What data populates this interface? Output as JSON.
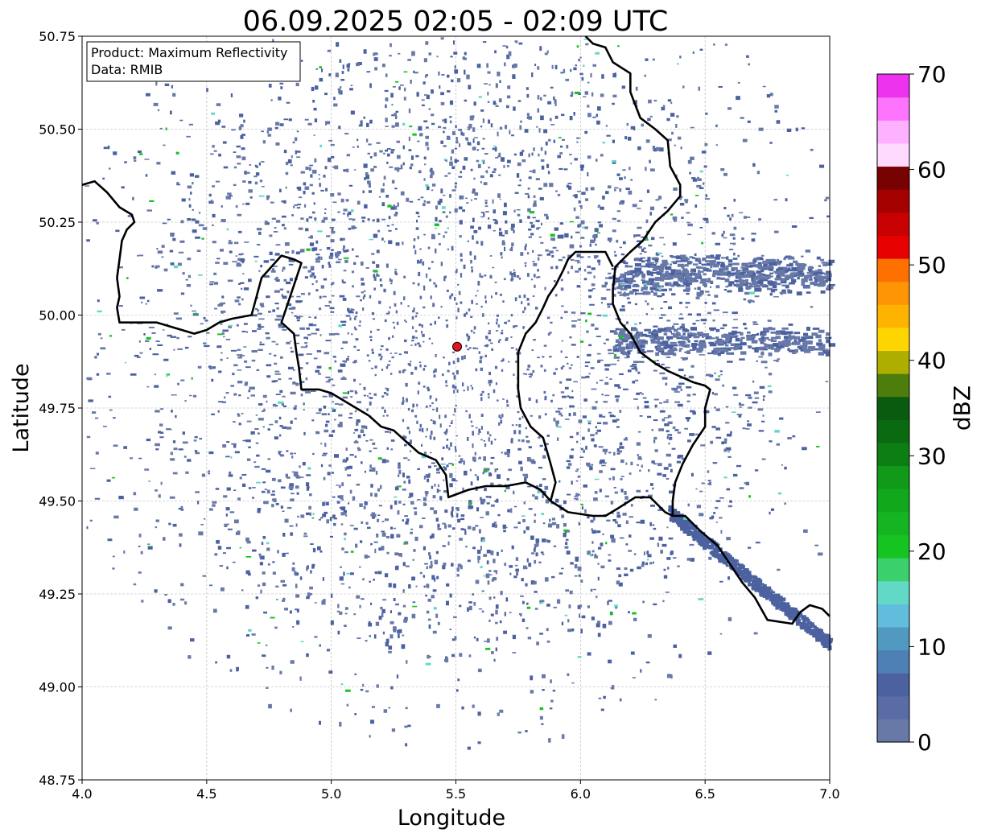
{
  "title": "06.09.2025 02:05 - 02:09 UTC",
  "map": {
    "xlabel": "Longitude",
    "ylabel": "Latitude",
    "xlim": [
      4.0,
      7.0
    ],
    "ylim": [
      48.75,
      50.75
    ],
    "xticks": [
      "4.0",
      "4.5",
      "5.0",
      "5.5",
      "6.0",
      "6.5",
      "7.0"
    ],
    "yticks": [
      "48.75",
      "49.00",
      "49.25",
      "49.50",
      "49.75",
      "50.00",
      "50.25",
      "50.50",
      "50.75"
    ],
    "grid": true,
    "radar_site": {
      "lon": 5.505,
      "lat": 49.915,
      "color": "#e8141c"
    },
    "info_box": {
      "product": "Product: Maximum Reflectivity",
      "data": "Data: RMIB"
    },
    "borders": [
      [
        [
          4.0,
          50.35
        ],
        [
          4.05,
          50.36
        ],
        [
          4.1,
          50.33
        ],
        [
          4.15,
          50.29
        ],
        [
          4.2,
          50.27
        ],
        [
          4.21,
          50.25
        ],
        [
          4.18,
          50.23
        ],
        [
          4.16,
          50.2
        ],
        [
          4.15,
          50.15
        ],
        [
          4.14,
          50.1
        ],
        [
          4.15,
          50.05
        ],
        [
          4.14,
          50.02
        ],
        [
          4.15,
          49.98
        ],
        [
          4.23,
          49.98
        ],
        [
          4.3,
          49.98
        ],
        [
          4.4,
          49.96
        ],
        [
          4.45,
          49.95
        ],
        [
          4.5,
          49.96
        ],
        [
          4.55,
          49.98
        ],
        [
          4.6,
          49.99
        ],
        [
          4.68,
          50.0
        ],
        [
          4.7,
          50.05
        ],
        [
          4.72,
          50.1
        ],
        [
          4.8,
          50.16
        ],
        [
          4.85,
          50.15
        ],
        [
          4.88,
          50.14
        ],
        [
          4.86,
          50.1
        ],
        [
          4.84,
          50.06
        ],
        [
          4.82,
          50.02
        ],
        [
          4.8,
          49.98
        ],
        [
          4.85,
          49.95
        ],
        [
          4.86,
          49.9
        ],
        [
          4.87,
          49.86
        ],
        [
          4.88,
          49.8
        ],
        [
          4.95,
          49.8
        ],
        [
          5.0,
          49.79
        ],
        [
          5.05,
          49.77
        ],
        [
          5.1,
          49.75
        ],
        [
          5.15,
          49.73
        ],
        [
          5.2,
          49.7
        ],
        [
          5.25,
          49.69
        ],
        [
          5.3,
          49.66
        ],
        [
          5.35,
          49.63
        ],
        [
          5.42,
          49.61
        ],
        [
          5.46,
          49.57
        ],
        [
          5.47,
          49.51
        ],
        [
          5.55,
          49.53
        ],
        [
          5.62,
          49.54
        ],
        [
          5.7,
          49.54
        ],
        [
          5.78,
          49.55
        ],
        [
          5.84,
          49.53
        ],
        [
          5.88,
          49.5
        ],
        [
          5.95,
          49.47
        ],
        [
          6.05,
          49.46
        ],
        [
          6.1,
          49.46
        ],
        [
          6.15,
          49.48
        ],
        [
          6.22,
          49.51
        ],
        [
          6.28,
          49.51
        ],
        [
          6.34,
          49.47
        ],
        [
          6.37,
          49.46
        ],
        [
          6.42,
          49.46
        ],
        [
          6.48,
          49.42
        ],
        [
          6.55,
          49.38
        ],
        [
          6.6,
          49.33
        ],
        [
          6.65,
          49.28
        ],
        [
          6.7,
          49.24
        ],
        [
          6.75,
          49.18
        ],
        [
          6.85,
          49.17
        ],
        [
          6.88,
          49.2
        ],
        [
          6.92,
          49.22
        ],
        [
          6.97,
          49.21
        ],
        [
          7.0,
          49.19
        ]
      ],
      [
        [
          6.02,
          50.75
        ],
        [
          6.05,
          50.73
        ],
        [
          6.1,
          50.72
        ],
        [
          6.13,
          50.68
        ],
        [
          6.2,
          50.65
        ],
        [
          6.2,
          50.6
        ],
        [
          6.24,
          50.53
        ],
        [
          6.3,
          50.5
        ],
        [
          6.35,
          50.47
        ],
        [
          6.36,
          50.4
        ],
        [
          6.4,
          50.35
        ],
        [
          6.4,
          50.32
        ],
        [
          6.35,
          50.28
        ],
        [
          6.3,
          50.25
        ],
        [
          6.25,
          50.2
        ],
        [
          6.2,
          50.17
        ],
        [
          6.17,
          50.15
        ],
        [
          6.14,
          50.13
        ],
        [
          6.13,
          50.07
        ],
        [
          6.13,
          50.03
        ],
        [
          6.16,
          49.98
        ],
        [
          6.2,
          49.95
        ],
        [
          6.24,
          49.9
        ],
        [
          6.3,
          49.87
        ],
        [
          6.35,
          49.85
        ],
        [
          6.45,
          49.82
        ],
        [
          6.5,
          49.81
        ],
        [
          6.52,
          49.8
        ],
        [
          6.5,
          49.75
        ],
        [
          6.5,
          49.7
        ],
        [
          6.45,
          49.65
        ],
        [
          6.41,
          49.6
        ],
        [
          6.38,
          49.55
        ],
        [
          6.37,
          49.5
        ],
        [
          6.37,
          49.46
        ]
      ],
      [
        [
          6.13,
          50.13
        ],
        [
          6.1,
          50.17
        ],
        [
          6.05,
          50.17
        ],
        [
          5.98,
          50.17
        ],
        [
          5.95,
          50.15
        ],
        [
          5.93,
          50.12
        ],
        [
          5.9,
          50.08
        ],
        [
          5.87,
          50.05
        ],
        [
          5.85,
          50.02
        ],
        [
          5.82,
          49.98
        ],
        [
          5.78,
          49.95
        ],
        [
          5.75,
          49.9
        ],
        [
          5.75,
          49.85
        ],
        [
          5.75,
          49.8
        ],
        [
          5.76,
          49.75
        ],
        [
          5.8,
          49.7
        ],
        [
          5.85,
          49.67
        ],
        [
          5.88,
          49.6
        ],
        [
          5.9,
          49.55
        ],
        [
          5.88,
          49.5
        ]
      ]
    ]
  },
  "colorbar": {
    "label": "dBZ",
    "min": 0,
    "max": 70,
    "ticks": [
      "0",
      "10",
      "20",
      "30",
      "40",
      "50",
      "60",
      "70"
    ],
    "colors": [
      "#6879a8",
      "#5a6ca5",
      "#4b61a0",
      "#4f80b5",
      "#5299c2",
      "#62bddc",
      "#62d9c6",
      "#3ad06c",
      "#16c421",
      "#15b422",
      "#12a81c",
      "#119a1a",
      "#0d7e14",
      "#0a6a12",
      "#0a5a0f",
      "#4d7d0b",
      "#aeae00",
      "#fed500",
      "#feb300",
      "#fd9504",
      "#fe7100",
      "#e60100",
      "#c70101",
      "#a60101",
      "#780101",
      "#fedafe",
      "#feb1fe",
      "#fe74fe",
      "#ee33ee"
    ]
  }
}
